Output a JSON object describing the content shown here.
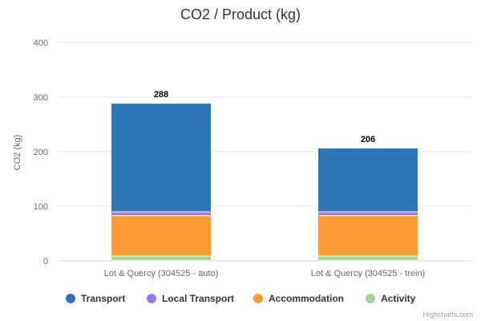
{
  "chart_data": {
    "type": "bar",
    "stacked": true,
    "title": "CO2 / Product (kg)",
    "xlabel": "",
    "ylabel": "CO2 (kg)",
    "ylim": [
      0,
      400
    ],
    "yticks": [
      0,
      100,
      200,
      300,
      400
    ],
    "grid": true,
    "legend_position": "bottom",
    "categories": [
      "Lot & Quercy (304525 - auto)",
      "Lot & Quercy (304525 - trein)"
    ],
    "series": [
      {
        "name": "Activity",
        "color": "#a6d38d",
        "values": [
          8,
          8
        ]
      },
      {
        "name": "Accommodation",
        "color": "#fd9a32",
        "values": [
          74,
          74
        ]
      },
      {
        "name": "Local Transport",
        "color": "#9f7be1",
        "values": [
          7,
          7
        ]
      },
      {
        "name": "Transport",
        "color": "#2e75b6",
        "values": [
          199,
          117
        ]
      }
    ],
    "legend_order": [
      "Transport",
      "Local Transport",
      "Accommodation",
      "Activity"
    ],
    "totals": [
      288,
      206
    ]
  },
  "credits": "Highcharts.com"
}
